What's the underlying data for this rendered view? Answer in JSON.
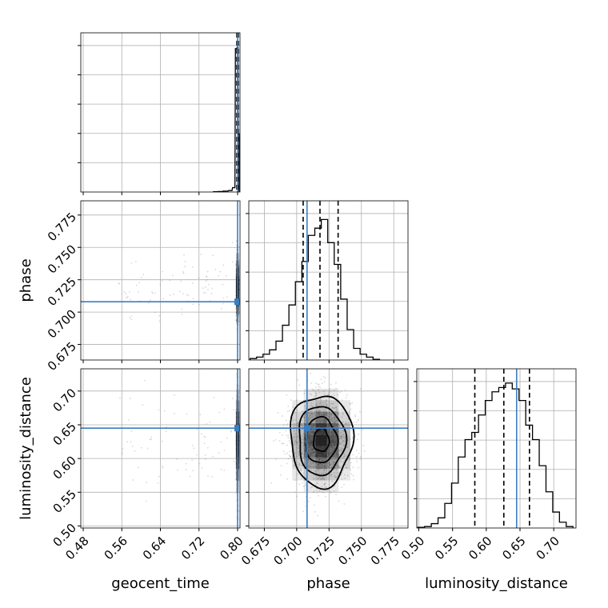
{
  "chart_data": {
    "type": "corner",
    "parameters": [
      "geocent_time",
      "phase",
      "luminosity_distance"
    ],
    "truths": [
      0.8,
      0.708,
      0.645
    ],
    "colors": {
      "truth": "#3a7ec2",
      "hist": "#000000",
      "quantile": "#000000",
      "grid": "#b0b0b0"
    },
    "grid": true,
    "axes": {
      "geocent_time": {
        "range": [
          0.475,
          0.805
        ],
        "ticks": [
          0.48,
          0.56,
          0.64,
          0.72,
          0.8
        ],
        "tick_labels": [
          "0.48",
          "0.56",
          "0.64",
          "0.72",
          "0.80"
        ]
      },
      "phase": {
        "range": [
          0.663,
          0.786
        ],
        "ticks": [
          0.675,
          0.7,
          0.725,
          0.75,
          0.775
        ],
        "tick_labels": [
          "0.675",
          "0.700",
          "0.725",
          "0.750",
          "0.775"
        ]
      },
      "luminosity_distance": {
        "range": [
          0.497,
          0.733
        ],
        "ticks": [
          0.5,
          0.55,
          0.6,
          0.65,
          0.7
        ],
        "tick_labels": [
          "0.50",
          "0.55",
          "0.60",
          "0.65",
          "0.70"
        ]
      }
    },
    "marginals": {
      "geocent_time": {
        "hist": {
          "x": [
            0.755,
            0.765,
            0.775,
            0.785,
            0.792,
            0.797,
            0.8,
            0.802
          ],
          "counts": [
            0.002,
            0.003,
            0.006,
            0.01,
            0.03,
            0.99,
            1.0,
            0.4
          ]
        },
        "quantiles": [
          0.7985,
          0.8,
          0.8015
        ]
      },
      "phase": {
        "hist": {
          "x": [
            0.6665,
            0.6715,
            0.6765,
            0.6815,
            0.6865,
            0.6915,
            0.6965,
            0.7015,
            0.7065,
            0.7115,
            0.7165,
            0.7215,
            0.7265,
            0.7315,
            0.7365,
            0.7415,
            0.7465,
            0.7515,
            0.7565,
            0.7615
          ],
          "counts": [
            0.01,
            0.02,
            0.04,
            0.07,
            0.13,
            0.24,
            0.38,
            0.54,
            0.68,
            0.86,
            0.91,
            0.97,
            0.81,
            0.66,
            0.42,
            0.21,
            0.08,
            0.04,
            0.02,
            0.005
          ]
        },
        "quantiles": [
          0.705,
          0.718,
          0.732
        ]
      },
      "luminosity_distance": {
        "hist": {
          "x": [
            0.5035,
            0.5135,
            0.5235,
            0.5335,
            0.5435,
            0.5535,
            0.5635,
            0.5735,
            0.5835,
            0.5935,
            0.6035,
            0.6135,
            0.6235,
            0.6335,
            0.6435,
            0.6535,
            0.6635,
            0.6735,
            0.6835,
            0.6935,
            0.7035,
            0.7135,
            0.7235
          ],
          "counts": [
            0.005,
            0.01,
            0.03,
            0.07,
            0.17,
            0.31,
            0.49,
            0.61,
            0.66,
            0.78,
            0.88,
            0.94,
            0.97,
            1.0,
            0.96,
            0.88,
            0.71,
            0.61,
            0.43,
            0.25,
            0.11,
            0.04,
            0.01
          ]
        },
        "quantiles": [
          0.583,
          0.626,
          0.664
        ]
      }
    },
    "joint": {
      "phase_vs_geocent_time": {
        "x_mean": 0.8,
        "x_sd": 0.001,
        "y_mean": 0.719,
        "y_sd": 0.012
      },
      "luminosity_distance_vs_geocent_time": {
        "x_mean": 0.8,
        "x_sd": 0.001,
        "y_mean": 0.627,
        "y_sd": 0.034
      },
      "luminosity_distance_vs_phase": {
        "x_mean": 0.719,
        "x_sd": 0.012,
        "y_mean": 0.627,
        "y_sd": 0.034,
        "contour_levels": [
          0.5,
          1.0,
          1.5,
          2.0
        ]
      }
    }
  }
}
